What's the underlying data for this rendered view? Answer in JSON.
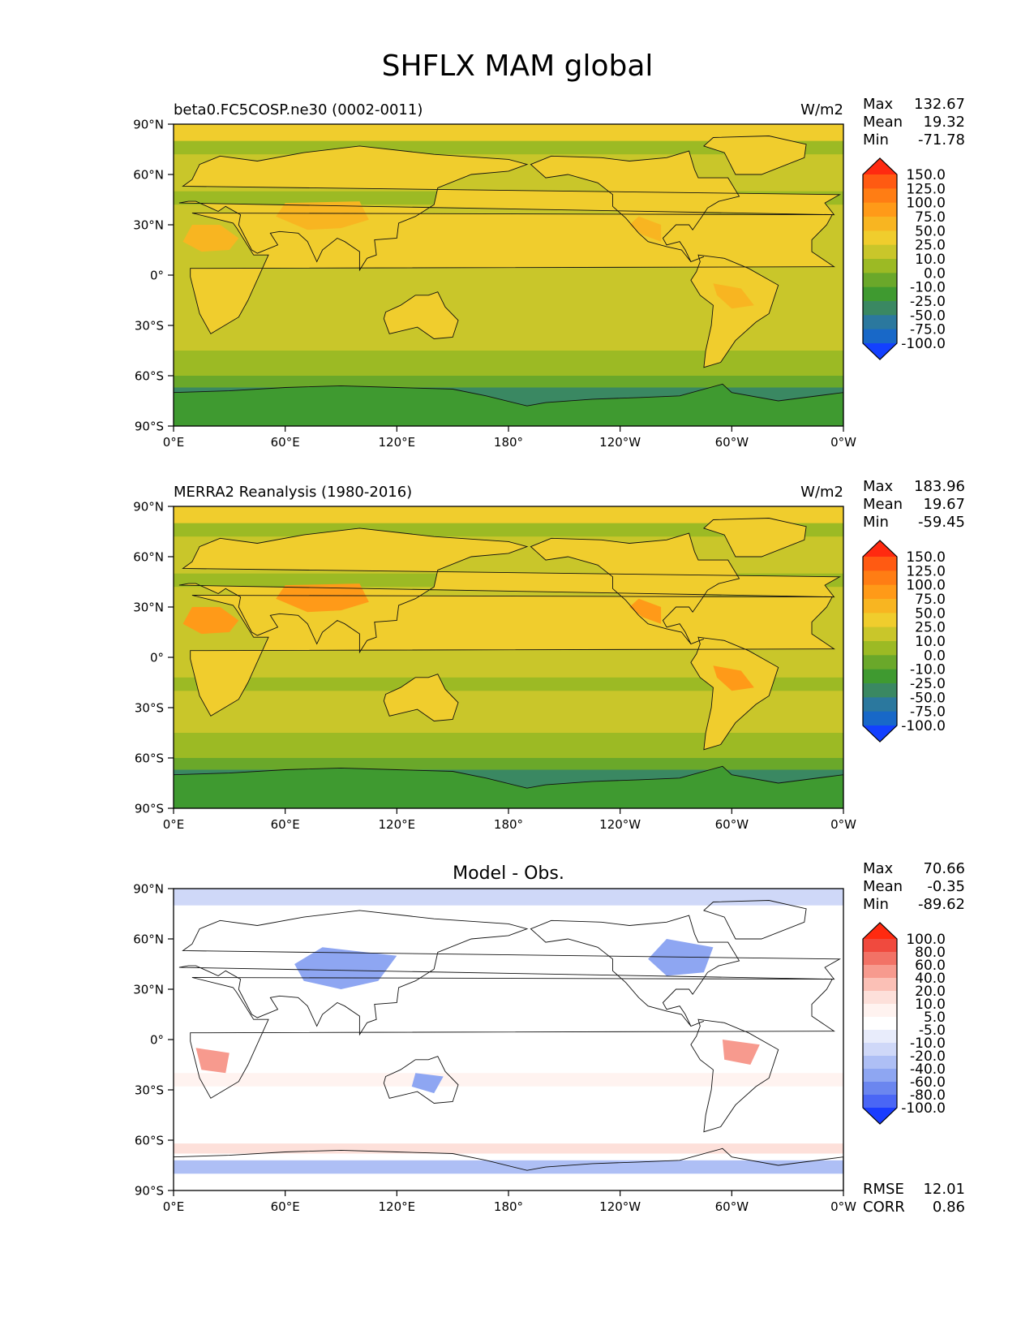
{
  "figure": {
    "title": "SHFLX MAM global"
  },
  "axes": {
    "lat_ticks": [
      "90°N",
      "60°N",
      "30°N",
      "0°",
      "30°S",
      "60°S",
      "90°S"
    ],
    "lon_ticks": [
      "0°E",
      "60°E",
      "120°E",
      "180°",
      "120°W",
      "60°W",
      "0°W"
    ]
  },
  "colorbars": {
    "main": {
      "labels": [
        "150.0",
        "125.0",
        "100.0",
        "75.0",
        "50.0",
        "25.0",
        "10.0",
        "0.0",
        "-10.0",
        "-25.0",
        "-50.0",
        "-75.0",
        "-100.0"
      ],
      "colors": [
        "#ff2a10",
        "#ff5a12",
        "#ff7d14",
        "#ff9a18",
        "#f8b521",
        "#f0cd2d",
        "#c9c62a",
        "#9cba24",
        "#6aa82a",
        "#3f9a30",
        "#3a8862",
        "#2b789e",
        "#1868c8",
        "#1340ff"
      ]
    },
    "diff": {
      "labels": [
        "100.0",
        "80.0",
        "60.0",
        "40.0",
        "20.0",
        "10.0",
        "5.0",
        "-5.0",
        "-10.0",
        "-20.0",
        "-40.0",
        "-60.0",
        "-80.0",
        "-100.0"
      ],
      "colors": [
        "#ff2a10",
        "#f04a3e",
        "#f27266",
        "#f79a8e",
        "#fbc0b6",
        "#fde0da",
        "#fff3f0",
        "#ffffff",
        "#e8ecfb",
        "#cfd8f8",
        "#aebff5",
        "#8ea6f2",
        "#6b86ef",
        "#4a66f5",
        "#1a3cff"
      ]
    }
  },
  "panels": [
    {
      "left_title": "beta0.FC5COSP.ne30 (0002-0011)",
      "units": "W/m2",
      "stats": [
        {
          "label": "Max",
          "value": "132.67"
        },
        {
          "label": "Mean",
          "value": "19.32"
        },
        {
          "label": "Min",
          "value": "-71.78"
        }
      ]
    },
    {
      "left_title": "MERRA2 Reanalysis (1980-2016)",
      "units": "W/m2",
      "stats": [
        {
          "label": "Max",
          "value": "183.96"
        },
        {
          "label": "Mean",
          "value": "19.67"
        },
        {
          "label": "Min",
          "value": "-59.45"
        }
      ]
    },
    {
      "center_title": "Model - Obs.",
      "stats": [
        {
          "label": "Max",
          "value": "70.66"
        },
        {
          "label": "Mean",
          "value": "-0.35"
        },
        {
          "label": "Min",
          "value": "-89.62"
        }
      ],
      "metrics": [
        {
          "label": "RMSE",
          "value": "12.01"
        },
        {
          "label": "CORR",
          "value": "0.86"
        }
      ]
    }
  ],
  "chart_data": [
    {
      "type": "heatmap",
      "title": "beta0.FC5COSP.ne30 (0002-0011)",
      "units": "W/m2",
      "xlim": [
        0,
        360
      ],
      "ylim": [
        -90,
        90
      ],
      "max": 132.67,
      "mean": 19.32,
      "min": -71.78,
      "levels": [
        -100,
        -75,
        -50,
        -25,
        -10,
        0,
        10,
        25,
        50,
        75,
        100,
        125,
        150
      ]
    },
    {
      "type": "heatmap",
      "title": "MERRA2 Reanalysis (1980-2016)",
      "units": "W/m2",
      "xlim": [
        0,
        360
      ],
      "ylim": [
        -90,
        90
      ],
      "max": 183.96,
      "mean": 19.67,
      "min": -59.45,
      "levels": [
        -100,
        -75,
        -50,
        -25,
        -10,
        0,
        10,
        25,
        50,
        75,
        100,
        125,
        150
      ]
    },
    {
      "type": "heatmap",
      "title": "Model - Obs.",
      "xlim": [
        0,
        360
      ],
      "ylim": [
        -90,
        90
      ],
      "max": 70.66,
      "mean": -0.35,
      "min": -89.62,
      "rmse": 12.01,
      "corr": 0.86,
      "levels": [
        -100,
        -80,
        -60,
        -40,
        -20,
        -10,
        -5,
        5,
        10,
        20,
        40,
        60,
        80,
        100
      ]
    }
  ]
}
